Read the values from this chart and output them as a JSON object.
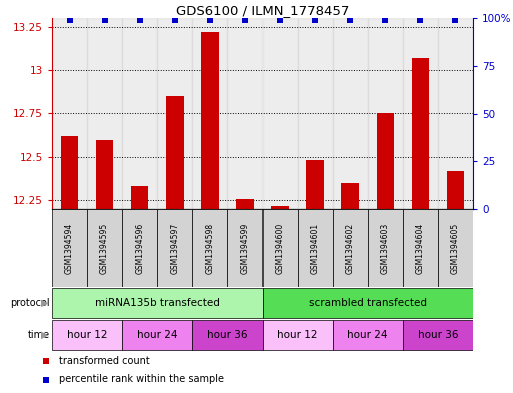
{
  "title": "GDS6100 / ILMN_1778457",
  "samples": [
    "GSM1394594",
    "GSM1394595",
    "GSM1394596",
    "GSM1394597",
    "GSM1394598",
    "GSM1394599",
    "GSM1394600",
    "GSM1394601",
    "GSM1394602",
    "GSM1394603",
    "GSM1394604",
    "GSM1394605"
  ],
  "bar_values": [
    12.62,
    12.6,
    12.33,
    12.85,
    13.22,
    12.26,
    12.22,
    12.48,
    12.35,
    12.75,
    13.07,
    12.42
  ],
  "percentile_values": [
    99,
    99,
    99,
    99,
    99,
    99,
    99,
    99,
    99,
    99,
    99,
    99
  ],
  "bar_color": "#cc0000",
  "percentile_color": "#0000cc",
  "ylim_left": [
    12.2,
    13.3
  ],
  "ylim_right": [
    0,
    100
  ],
  "yticks_left": [
    12.25,
    12.5,
    12.75,
    13.0,
    13.25
  ],
  "yticks_right": [
    0,
    25,
    50,
    75,
    100
  ],
  "ytick_labels_left": [
    "12.25",
    "12.5",
    "12.75",
    "13",
    "13.25"
  ],
  "ytick_labels_right": [
    "0",
    "25",
    "50",
    "75",
    "100%"
  ],
  "protocol_groups": [
    {
      "label": "miRNA135b transfected",
      "start": 0,
      "end": 6,
      "color": "#adf5ad"
    },
    {
      "label": "scrambled transfected",
      "start": 6,
      "end": 12,
      "color": "#55dd55"
    }
  ],
  "time_groups": [
    {
      "label": "hour 12",
      "start": 0,
      "end": 2,
      "color": "#f9c0f9"
    },
    {
      "label": "hour 24",
      "start": 2,
      "end": 4,
      "color": "#ee82ee"
    },
    {
      "label": "hour 36",
      "start": 4,
      "end": 6,
      "color": "#cc44cc"
    },
    {
      "label": "hour 12",
      "start": 6,
      "end": 8,
      "color": "#f9c0f9"
    },
    {
      "label": "hour 24",
      "start": 8,
      "end": 10,
      "color": "#ee82ee"
    },
    {
      "label": "hour 36",
      "start": 10,
      "end": 12,
      "color": "#cc44cc"
    }
  ],
  "legend_items": [
    {
      "label": "transformed count",
      "color": "#cc0000"
    },
    {
      "label": "percentile rank within the sample",
      "color": "#0000cc"
    }
  ],
  "background_color": "#ffffff",
  "grid_color": "#000000",
  "sample_box_color": "#d3d3d3",
  "fig_width": 5.13,
  "fig_height": 3.93,
  "dpi": 100
}
